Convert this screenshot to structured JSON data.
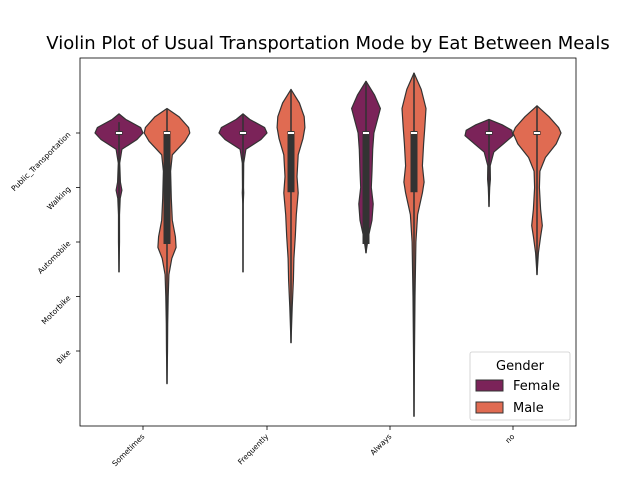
{
  "chart_data": {
    "type": "violin",
    "title": "Violin Plot of Usual Transportation Mode by Eat Between Meals",
    "xlabel": "",
    "ylabel": "",
    "categories": [
      "Sometimes",
      "Frequently",
      "Always",
      "no"
    ],
    "y_categories": [
      "Public_Transportation",
      "Walking",
      "Automobile",
      "Motorbike",
      "Bike"
    ],
    "legend": {
      "title": "Gender",
      "placement": "lower right",
      "entries": [
        "Female",
        "Male"
      ]
    },
    "series": [
      {
        "name": "Female",
        "color": "#7b2359",
        "violins": [
          {
            "category": "Sometimes",
            "ymin": -0.2,
            "ymax": 2.55,
            "median": 0,
            "q1": 0,
            "q3": 0,
            "density": [
              [
                -0.35,
                0
              ],
              [
                -0.25,
                0.28
              ],
              [
                -0.1,
                0.9
              ],
              [
                0,
                1.0
              ],
              [
                0.12,
                0.75
              ],
              [
                0.3,
                0.12
              ],
              [
                0.55,
                0.03
              ],
              [
                0.9,
                0.06
              ],
              [
                1.05,
                0.12
              ],
              [
                1.2,
                0.05
              ],
              [
                1.5,
                0.02
              ],
              [
                2.0,
                0.02
              ],
              [
                2.55,
                0
              ]
            ]
          },
          {
            "category": "Frequently",
            "ymin": -0.35,
            "ymax": 2.55,
            "median": 0,
            "q1": 0,
            "q3": 0,
            "density": [
              [
                -0.35,
                0
              ],
              [
                -0.25,
                0.28
              ],
              [
                -0.1,
                0.9
              ],
              [
                0,
                1.0
              ],
              [
                0.12,
                0.75
              ],
              [
                0.3,
                0.12
              ],
              [
                0.55,
                0.03
              ],
              [
                1.0,
                0.02
              ],
              [
                1.1,
                0.03
              ],
              [
                1.3,
                0.01
              ],
              [
                2.55,
                0
              ]
            ]
          },
          {
            "category": "Always",
            "ymin": -0.95,
            "ymax": 2.2,
            "median": 0,
            "q1": 0,
            "q3": 2.0,
            "density": [
              [
                -0.95,
                0
              ],
              [
                -0.7,
                0.35
              ],
              [
                -0.45,
                0.6
              ],
              [
                -0.2,
                0.45
              ],
              [
                0,
                0.33
              ],
              [
                0.3,
                0.28
              ],
              [
                0.7,
                0.25
              ],
              [
                1.0,
                0.22
              ],
              [
                1.3,
                0.3
              ],
              [
                1.6,
                0.25
              ],
              [
                1.9,
                0.1
              ],
              [
                2.2,
                0
              ]
            ]
          },
          {
            "category": "no",
            "ymin": -0.25,
            "ymax": 1.35,
            "median": 0,
            "q1": 0,
            "q3": 0,
            "density": [
              [
                -0.25,
                0
              ],
              [
                -0.15,
                0.55
              ],
              [
                -0.05,
                0.95
              ],
              [
                0.05,
                1.0
              ],
              [
                0.2,
                0.6
              ],
              [
                0.35,
                0.2
              ],
              [
                0.6,
                0.05
              ],
              [
                0.85,
                0.06
              ],
              [
                1.0,
                0.03
              ],
              [
                1.35,
                0
              ]
            ]
          }
        ]
      },
      {
        "name": "Male",
        "color": "#e06b52",
        "violins": [
          {
            "category": "Sometimes",
            "ymin": -0.45,
            "ymax": 4.6,
            "median": 0,
            "q1": 0,
            "q3": 2.0,
            "density": [
              [
                -0.45,
                0
              ],
              [
                -0.3,
                0.5
              ],
              [
                -0.1,
                0.9
              ],
              [
                0,
                0.95
              ],
              [
                0.15,
                0.75
              ],
              [
                0.4,
                0.22
              ],
              [
                0.7,
                0.15
              ],
              [
                1.2,
                0.18
              ],
              [
                1.6,
                0.22
              ],
              [
                1.9,
                0.35
              ],
              [
                2.1,
                0.38
              ],
              [
                2.3,
                0.2
              ],
              [
                2.6,
                0.08
              ],
              [
                3.0,
                0.05
              ],
              [
                3.5,
                0.03
              ],
              [
                4.0,
                0.02
              ],
              [
                4.6,
                0
              ]
            ]
          },
          {
            "category": "Frequently",
            "ymin": -0.8,
            "ymax": 3.85,
            "median": 0,
            "q1": 0,
            "q3": 1.05,
            "density": [
              [
                -0.8,
                0
              ],
              [
                -0.55,
                0.35
              ],
              [
                -0.3,
                0.55
              ],
              [
                -0.1,
                0.58
              ],
              [
                0.1,
                0.5
              ],
              [
                0.4,
                0.3
              ],
              [
                0.8,
                0.25
              ],
              [
                1.1,
                0.3
              ],
              [
                1.5,
                0.22
              ],
              [
                1.9,
                0.18
              ],
              [
                2.3,
                0.12
              ],
              [
                2.7,
                0.1
              ],
              [
                3.2,
                0.05
              ],
              [
                3.85,
                0
              ]
            ]
          },
          {
            "category": "Always",
            "ymin": -1.1,
            "ymax": 5.2,
            "median": 0,
            "q1": 0,
            "q3": 1.05,
            "density": [
              [
                -1.1,
                0
              ],
              [
                -0.8,
                0.3
              ],
              [
                -0.45,
                0.5
              ],
              [
                -0.1,
                0.45
              ],
              [
                0.2,
                0.4
              ],
              [
                0.6,
                0.35
              ],
              [
                0.9,
                0.42
              ],
              [
                1.1,
                0.35
              ],
              [
                1.5,
                0.15
              ],
              [
                2.0,
                0.08
              ],
              [
                3.0,
                0.04
              ],
              [
                4.0,
                0.02
              ],
              [
                5.2,
                0
              ]
            ]
          },
          {
            "category": "no",
            "ymin": -0.5,
            "ymax": 2.6,
            "median": 0,
            "q1": 0,
            "q3": 0,
            "density": [
              [
                -0.5,
                0
              ],
              [
                -0.3,
                0.5
              ],
              [
                -0.1,
                0.9
              ],
              [
                0,
                1.0
              ],
              [
                0.2,
                0.8
              ],
              [
                0.45,
                0.35
              ],
              [
                0.7,
                0.12
              ],
              [
                1.0,
                0.1
              ],
              [
                1.4,
                0.15
              ],
              [
                1.7,
                0.22
              ],
              [
                1.9,
                0.15
              ],
              [
                2.2,
                0.06
              ],
              [
                2.6,
                0
              ]
            ]
          }
        ]
      }
    ]
  }
}
